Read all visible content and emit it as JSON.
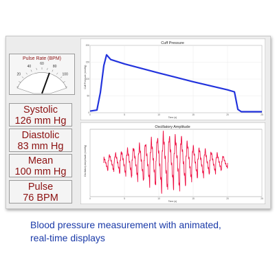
{
  "pulse_gauge": {
    "title": "Pulse Rate (BPM)",
    "scale_labels": [
      "20",
      "40",
      "60",
      "80",
      "100"
    ],
    "value_bpm": 76
  },
  "readouts": [
    {
      "label": "Systolic",
      "value": "126 mm Hg"
    },
    {
      "label": "Diastolic",
      "value": "83 mm Hg"
    },
    {
      "label": "Mean",
      "value": "100 mm Hg"
    },
    {
      "label": "Pulse",
      "value": "76 BPM"
    }
  ],
  "chart_data": [
    {
      "type": "line",
      "title": "Cuff Pressure",
      "xlabel": "Time (s)",
      "ylabel": "Cuff Pressure (mmHg)",
      "ylim": [
        0,
        200
      ],
      "xlim": [
        0,
        25
      ],
      "yticks": [
        "0",
        "50",
        "100",
        "150",
        "200"
      ],
      "xticks": [
        "0",
        "5",
        "10",
        "15",
        "20",
        "25"
      ],
      "color": "#2233dd",
      "x": [
        0,
        1,
        1.5,
        2,
        2.4,
        3,
        5,
        10,
        15,
        20,
        21,
        21.5,
        22,
        25
      ],
      "y": [
        5,
        8,
        60,
        140,
        172,
        158,
        145,
        118,
        92,
        68,
        62,
        10,
        3,
        3
      ]
    },
    {
      "type": "area",
      "title": "Oscillatory Amplitude",
      "xlabel": "Time (s)",
      "ylabel": "Oscillatory Amplitude (mmHg)",
      "ylim": [
        -4,
        4
      ],
      "xlim": [
        0,
        25
      ],
      "xticks": [
        "0",
        "5",
        "10",
        "15",
        "20",
        "25"
      ],
      "color": "#ee1144",
      "x": [
        2,
        4,
        6,
        8,
        10,
        11,
        12,
        13,
        14,
        15,
        17,
        19,
        20
      ],
      "y": [
        0.8,
        1.2,
        1.8,
        2.4,
        3.2,
        3.6,
        3.0,
        3.4,
        2.6,
        2.0,
        1.5,
        1.0,
        0.6
      ]
    }
  ],
  "caption": {
    "line1": "Blood pressure measurement with animated,",
    "line2": "real-time displays"
  },
  "colors": {
    "readout_text": "#8b1010",
    "caption_text": "#1a3aa8",
    "cuff_line": "#2233dd",
    "oscillation_fill": "#ee1144"
  }
}
